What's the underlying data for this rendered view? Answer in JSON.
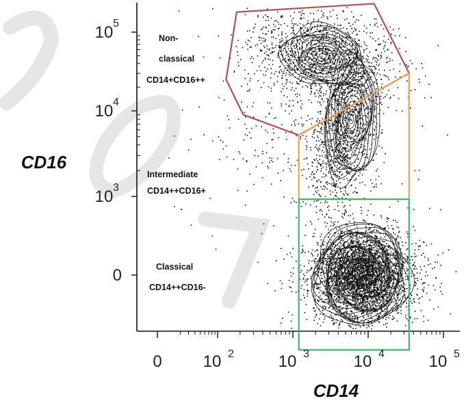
{
  "chart_data": {
    "type": "scatter",
    "subtype": "flow-cytometry-contour",
    "title": "",
    "xlabel": "CD14",
    "ylabel": "CD16",
    "x_scale": "biexponential",
    "y_scale": "biexponential",
    "x_ticks": [
      {
        "value": 0,
        "base": "0",
        "exp": ""
      },
      {
        "value": 100,
        "base": "10",
        "exp": "2"
      },
      {
        "value": 1000,
        "base": "10",
        "exp": "3"
      },
      {
        "value": 10000,
        "base": "10",
        "exp": "4"
      },
      {
        "value": 100000,
        "base": "10",
        "exp": "5"
      }
    ],
    "y_ticks": [
      {
        "value": 0,
        "base": "0",
        "exp": ""
      },
      {
        "value": 1000,
        "base": "10",
        "exp": "3"
      },
      {
        "value": 10000,
        "base": "10",
        "exp": "4"
      },
      {
        "value": 100000,
        "base": "10",
        "exp": "5"
      }
    ],
    "gates": [
      {
        "name": "nonclassical",
        "label_lines": [
          "Non-",
          "classical",
          "CD14+CD16++"
        ],
        "color": "#b5504e",
        "polygon": [
          [
            180,
            180000
          ],
          [
            12000,
            230000
          ],
          [
            35000,
            30000
          ],
          [
            1200,
            5200
          ],
          [
            220,
            9000
          ],
          [
            130,
            25000
          ]
        ]
      },
      {
        "name": "intermediate",
        "label_lines": [
          "Intermediate",
          "CD14++CD16+"
        ],
        "color": "#f0a050",
        "polygon": [
          [
            1200,
            5200
          ],
          [
            35000,
            30000
          ],
          [
            35000,
            850
          ],
          [
            1200,
            850
          ]
        ]
      },
      {
        "name": "classical",
        "label_lines": [
          "Classical",
          "CD14++CD16-"
        ],
        "color": "#3cb96a",
        "polygon": [
          [
            1200,
            850
          ],
          [
            35000,
            850
          ],
          [
            35000,
            -800
          ],
          [
            1200,
            -800
          ]
        ]
      }
    ],
    "populations": [
      {
        "name": "classical",
        "center_x": 8000,
        "center_y": 0,
        "count": 5200
      },
      {
        "name": "nonclassical",
        "center_x": 2500,
        "center_y": 50000,
        "count": 1400
      },
      {
        "name": "bridge",
        "center_x": 6000,
        "center_y": 8000,
        "count": 1100
      }
    ],
    "grid": false,
    "legend": "none"
  }
}
